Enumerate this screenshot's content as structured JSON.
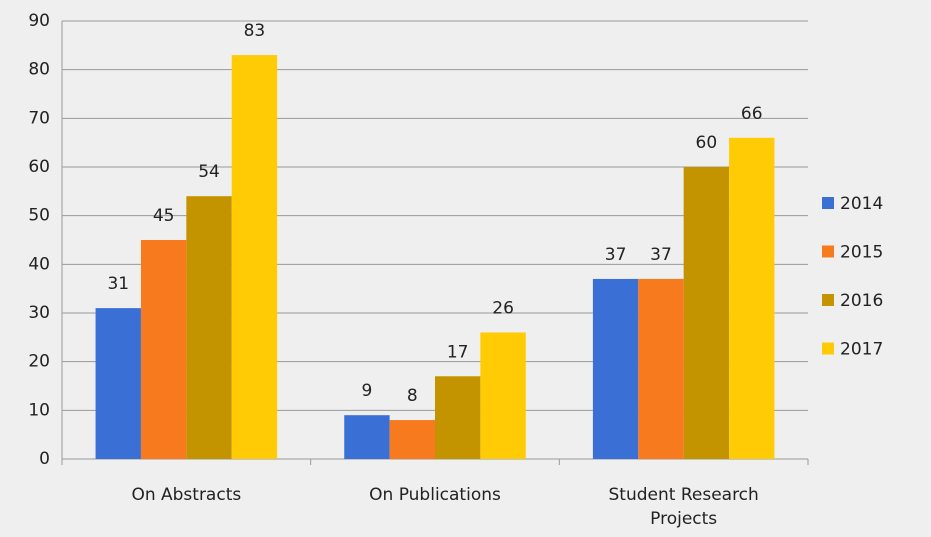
{
  "chart_data": {
    "type": "bar",
    "categories": [
      "On Abstracts",
      "On Publications",
      "Student Research Projects"
    ],
    "series": [
      {
        "name": "2014",
        "color": "#3a6fd6",
        "values": [
          31,
          9,
          37
        ]
      },
      {
        "name": "2015",
        "color": "#f77a1e",
        "values": [
          45,
          8,
          37
        ]
      },
      {
        "name": "2016",
        "color": "#c49400",
        "values": [
          54,
          17,
          60
        ]
      },
      {
        "name": "2017",
        "color": "#ffcb05",
        "values": [
          83,
          26,
          66
        ]
      }
    ],
    "ylim": [
      0,
      90
    ],
    "yticks": [
      0,
      10,
      20,
      30,
      40,
      50,
      60,
      70,
      80,
      90
    ],
    "grid": true,
    "legend": "right"
  }
}
